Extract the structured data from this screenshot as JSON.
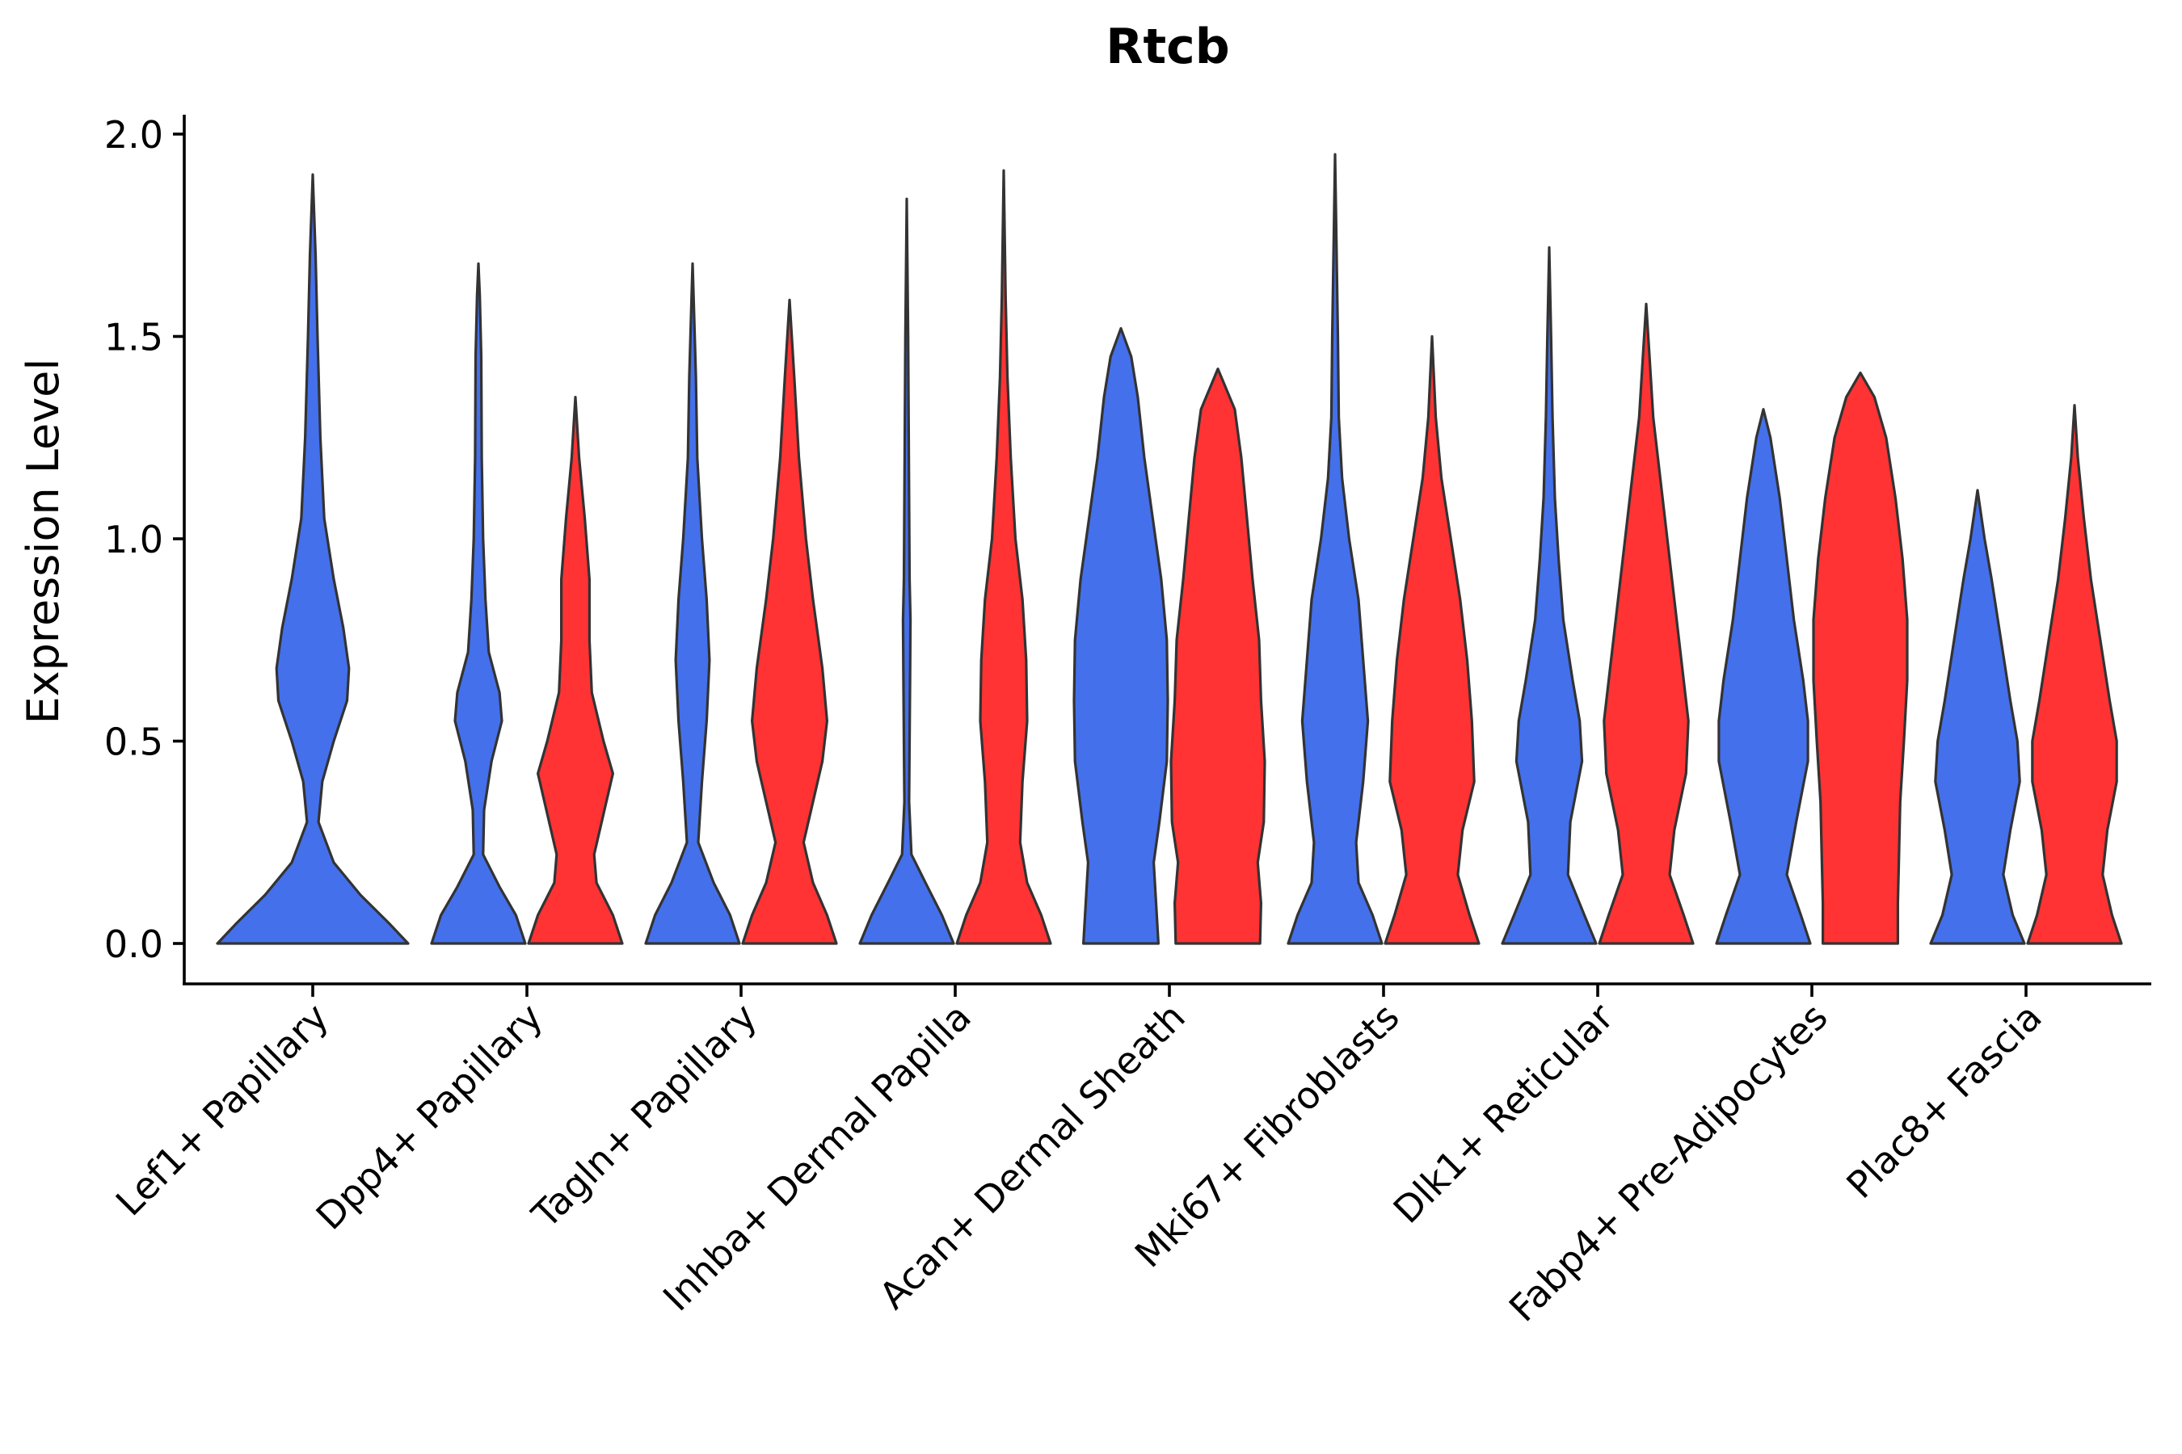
{
  "chart_data": {
    "type": "violin",
    "title": "Rtcb",
    "xlabel": "",
    "ylabel": "Expression Level",
    "ylim": [
      -0.1,
      2.05
    ],
    "yticks": [
      "0.0",
      "0.5",
      "1.0",
      "1.5",
      "2.0"
    ],
    "ytick_values": [
      0.0,
      0.5,
      1.0,
      1.5,
      2.0
    ],
    "categories": [
      "Lef1+ Papillary",
      "Dpp4+ Papillary",
      "Tagln+ Papillary",
      "Inhba+ Dermal Papilla",
      "Acan+ Dermal Sheath",
      "Mki67+ Fibroblasts",
      "Dlk1+ Reticular",
      "Fabp4+ Pre-Adipocytes",
      "Plac8+ Fascia"
    ],
    "group_colors": {
      "blue": "#4470EC",
      "red": "#FF3333"
    },
    "violins": [
      {
        "category_index": 0,
        "group": "blue",
        "max": 1.9,
        "profile": [
          [
            0.0,
            1.0
          ],
          [
            0.05,
            0.8
          ],
          [
            0.12,
            0.5
          ],
          [
            0.2,
            0.22
          ],
          [
            0.3,
            0.06
          ],
          [
            0.4,
            0.1
          ],
          [
            0.5,
            0.22
          ],
          [
            0.6,
            0.36
          ],
          [
            0.68,
            0.38
          ],
          [
            0.78,
            0.32
          ],
          [
            0.9,
            0.22
          ],
          [
            1.05,
            0.12
          ],
          [
            1.25,
            0.08
          ],
          [
            1.5,
            0.05
          ],
          [
            1.7,
            0.03
          ],
          [
            1.9,
            0.0
          ]
        ]
      },
      {
        "category_index": 1,
        "group": "blue",
        "max": 1.68,
        "profile": [
          [
            0.0,
            1.0
          ],
          [
            0.07,
            0.8
          ],
          [
            0.14,
            0.45
          ],
          [
            0.22,
            0.1
          ],
          [
            0.33,
            0.12
          ],
          [
            0.45,
            0.28
          ],
          [
            0.55,
            0.5
          ],
          [
            0.62,
            0.45
          ],
          [
            0.72,
            0.22
          ],
          [
            0.85,
            0.15
          ],
          [
            1.0,
            0.1
          ],
          [
            1.2,
            0.07
          ],
          [
            1.45,
            0.06
          ],
          [
            1.6,
            0.03
          ],
          [
            1.68,
            0.0
          ]
        ]
      },
      {
        "category_index": 1,
        "group": "red",
        "max": 1.35,
        "profile": [
          [
            0.0,
            1.0
          ],
          [
            0.07,
            0.8
          ],
          [
            0.15,
            0.45
          ],
          [
            0.22,
            0.4
          ],
          [
            0.32,
            0.6
          ],
          [
            0.42,
            0.8
          ],
          [
            0.5,
            0.6
          ],
          [
            0.62,
            0.35
          ],
          [
            0.75,
            0.3
          ],
          [
            0.9,
            0.3
          ],
          [
            1.05,
            0.2
          ],
          [
            1.2,
            0.08
          ],
          [
            1.35,
            0.0
          ]
        ]
      },
      {
        "category_index": 2,
        "group": "blue",
        "max": 1.68,
        "profile": [
          [
            0.0,
            1.0
          ],
          [
            0.07,
            0.8
          ],
          [
            0.15,
            0.45
          ],
          [
            0.25,
            0.12
          ],
          [
            0.4,
            0.2
          ],
          [
            0.55,
            0.3
          ],
          [
            0.7,
            0.36
          ],
          [
            0.85,
            0.3
          ],
          [
            1.0,
            0.2
          ],
          [
            1.2,
            0.1
          ],
          [
            1.4,
            0.07
          ],
          [
            1.6,
            0.02
          ],
          [
            1.68,
            0.0
          ]
        ]
      },
      {
        "category_index": 2,
        "group": "red",
        "max": 1.59,
        "profile": [
          [
            0.0,
            1.0
          ],
          [
            0.07,
            0.8
          ],
          [
            0.15,
            0.5
          ],
          [
            0.25,
            0.3
          ],
          [
            0.35,
            0.5
          ],
          [
            0.45,
            0.7
          ],
          [
            0.55,
            0.8
          ],
          [
            0.68,
            0.7
          ],
          [
            0.85,
            0.5
          ],
          [
            1.0,
            0.35
          ],
          [
            1.2,
            0.2
          ],
          [
            1.4,
            0.1
          ],
          [
            1.59,
            0.0
          ]
        ]
      },
      {
        "category_index": 3,
        "group": "blue",
        "max": 1.84,
        "profile": [
          [
            0.0,
            1.0
          ],
          [
            0.07,
            0.75
          ],
          [
            0.15,
            0.4
          ],
          [
            0.22,
            0.1
          ],
          [
            0.35,
            0.05
          ],
          [
            0.5,
            0.06
          ],
          [
            0.65,
            0.07
          ],
          [
            0.8,
            0.08
          ],
          [
            0.9,
            0.06
          ],
          [
            1.1,
            0.05
          ],
          [
            1.3,
            0.04
          ],
          [
            1.5,
            0.03
          ],
          [
            1.84,
            0.0
          ]
        ]
      },
      {
        "category_index": 3,
        "group": "red",
        "max": 1.91,
        "profile": [
          [
            0.0,
            1.0
          ],
          [
            0.07,
            0.8
          ],
          [
            0.15,
            0.5
          ],
          [
            0.25,
            0.35
          ],
          [
            0.4,
            0.4
          ],
          [
            0.55,
            0.5
          ],
          [
            0.7,
            0.48
          ],
          [
            0.85,
            0.4
          ],
          [
            1.0,
            0.25
          ],
          [
            1.2,
            0.15
          ],
          [
            1.4,
            0.08
          ],
          [
            1.6,
            0.04
          ],
          [
            1.91,
            0.0
          ]
        ]
      },
      {
        "category_index": 4,
        "group": "blue",
        "max": 1.52,
        "profile": [
          [
            0.0,
            0.8
          ],
          [
            0.1,
            0.75
          ],
          [
            0.2,
            0.7
          ],
          [
            0.3,
            0.82
          ],
          [
            0.45,
            0.98
          ],
          [
            0.6,
            1.0
          ],
          [
            0.75,
            0.98
          ],
          [
            0.9,
            0.86
          ],
          [
            1.05,
            0.68
          ],
          [
            1.2,
            0.5
          ],
          [
            1.35,
            0.36
          ],
          [
            1.45,
            0.22
          ],
          [
            1.52,
            0.0
          ]
        ]
      },
      {
        "category_index": 4,
        "group": "red",
        "max": 1.42,
        "profile": [
          [
            0.0,
            0.9
          ],
          [
            0.1,
            0.92
          ],
          [
            0.2,
            0.85
          ],
          [
            0.3,
            0.98
          ],
          [
            0.45,
            1.0
          ],
          [
            0.6,
            0.92
          ],
          [
            0.75,
            0.88
          ],
          [
            0.9,
            0.74
          ],
          [
            1.05,
            0.62
          ],
          [
            1.2,
            0.5
          ],
          [
            1.32,
            0.36
          ],
          [
            1.42,
            0.0
          ]
        ]
      },
      {
        "category_index": 5,
        "group": "blue",
        "max": 1.95,
        "profile": [
          [
            0.0,
            1.0
          ],
          [
            0.07,
            0.8
          ],
          [
            0.15,
            0.5
          ],
          [
            0.25,
            0.45
          ],
          [
            0.4,
            0.6
          ],
          [
            0.55,
            0.7
          ],
          [
            0.7,
            0.6
          ],
          [
            0.85,
            0.5
          ],
          [
            1.0,
            0.3
          ],
          [
            1.15,
            0.15
          ],
          [
            1.3,
            0.08
          ],
          [
            1.5,
            0.06
          ],
          [
            1.95,
            0.0
          ]
        ]
      },
      {
        "category_index": 5,
        "group": "red",
        "max": 1.5,
        "profile": [
          [
            0.0,
            1.0
          ],
          [
            0.07,
            0.8
          ],
          [
            0.17,
            0.55
          ],
          [
            0.28,
            0.65
          ],
          [
            0.4,
            0.9
          ],
          [
            0.55,
            0.85
          ],
          [
            0.7,
            0.75
          ],
          [
            0.85,
            0.6
          ],
          [
            1.0,
            0.4
          ],
          [
            1.15,
            0.2
          ],
          [
            1.3,
            0.08
          ],
          [
            1.5,
            0.0
          ]
        ]
      },
      {
        "category_index": 6,
        "group": "blue",
        "max": 1.72,
        "profile": [
          [
            0.0,
            1.0
          ],
          [
            0.07,
            0.75
          ],
          [
            0.17,
            0.4
          ],
          [
            0.3,
            0.45
          ],
          [
            0.45,
            0.7
          ],
          [
            0.55,
            0.65
          ],
          [
            0.65,
            0.5
          ],
          [
            0.8,
            0.3
          ],
          [
            0.95,
            0.2
          ],
          [
            1.1,
            0.12
          ],
          [
            1.3,
            0.07
          ],
          [
            1.5,
            0.04
          ],
          [
            1.72,
            0.0
          ]
        ]
      },
      {
        "category_index": 6,
        "group": "red",
        "max": 1.58,
        "profile": [
          [
            0.0,
            1.0
          ],
          [
            0.07,
            0.8
          ],
          [
            0.17,
            0.5
          ],
          [
            0.28,
            0.6
          ],
          [
            0.42,
            0.85
          ],
          [
            0.55,
            0.9
          ],
          [
            0.7,
            0.75
          ],
          [
            0.85,
            0.6
          ],
          [
            1.0,
            0.45
          ],
          [
            1.15,
            0.3
          ],
          [
            1.3,
            0.15
          ],
          [
            1.45,
            0.07
          ],
          [
            1.58,
            0.0
          ]
        ]
      },
      {
        "category_index": 7,
        "group": "blue",
        "max": 1.32,
        "profile": [
          [
            0.0,
            1.0
          ],
          [
            0.07,
            0.8
          ],
          [
            0.17,
            0.5
          ],
          [
            0.3,
            0.7
          ],
          [
            0.45,
            0.95
          ],
          [
            0.55,
            0.95
          ],
          [
            0.65,
            0.85
          ],
          [
            0.8,
            0.65
          ],
          [
            0.95,
            0.5
          ],
          [
            1.1,
            0.35
          ],
          [
            1.25,
            0.15
          ],
          [
            1.32,
            0.0
          ]
        ]
      },
      {
        "category_index": 7,
        "group": "red",
        "max": 1.41,
        "profile": [
          [
            0.0,
            0.8
          ],
          [
            0.1,
            0.8
          ],
          [
            0.2,
            0.82
          ],
          [
            0.35,
            0.85
          ],
          [
            0.5,
            0.93
          ],
          [
            0.65,
            1.0
          ],
          [
            0.8,
            1.0
          ],
          [
            0.95,
            0.9
          ],
          [
            1.1,
            0.75
          ],
          [
            1.25,
            0.55
          ],
          [
            1.35,
            0.3
          ],
          [
            1.41,
            0.0
          ]
        ]
      },
      {
        "category_index": 8,
        "group": "blue",
        "max": 1.12,
        "profile": [
          [
            0.0,
            1.0
          ],
          [
            0.07,
            0.75
          ],
          [
            0.17,
            0.55
          ],
          [
            0.28,
            0.7
          ],
          [
            0.4,
            0.9
          ],
          [
            0.5,
            0.85
          ],
          [
            0.6,
            0.7
          ],
          [
            0.75,
            0.5
          ],
          [
            0.9,
            0.3
          ],
          [
            1.0,
            0.15
          ],
          [
            1.12,
            0.0
          ]
        ]
      },
      {
        "category_index": 8,
        "group": "red",
        "max": 1.33,
        "profile": [
          [
            0.0,
            1.0
          ],
          [
            0.07,
            0.8
          ],
          [
            0.17,
            0.6
          ],
          [
            0.28,
            0.7
          ],
          [
            0.4,
            0.9
          ],
          [
            0.5,
            0.9
          ],
          [
            0.6,
            0.75
          ],
          [
            0.75,
            0.55
          ],
          [
            0.9,
            0.35
          ],
          [
            1.05,
            0.2
          ],
          [
            1.2,
            0.07
          ],
          [
            1.33,
            0.0
          ]
        ]
      }
    ]
  }
}
